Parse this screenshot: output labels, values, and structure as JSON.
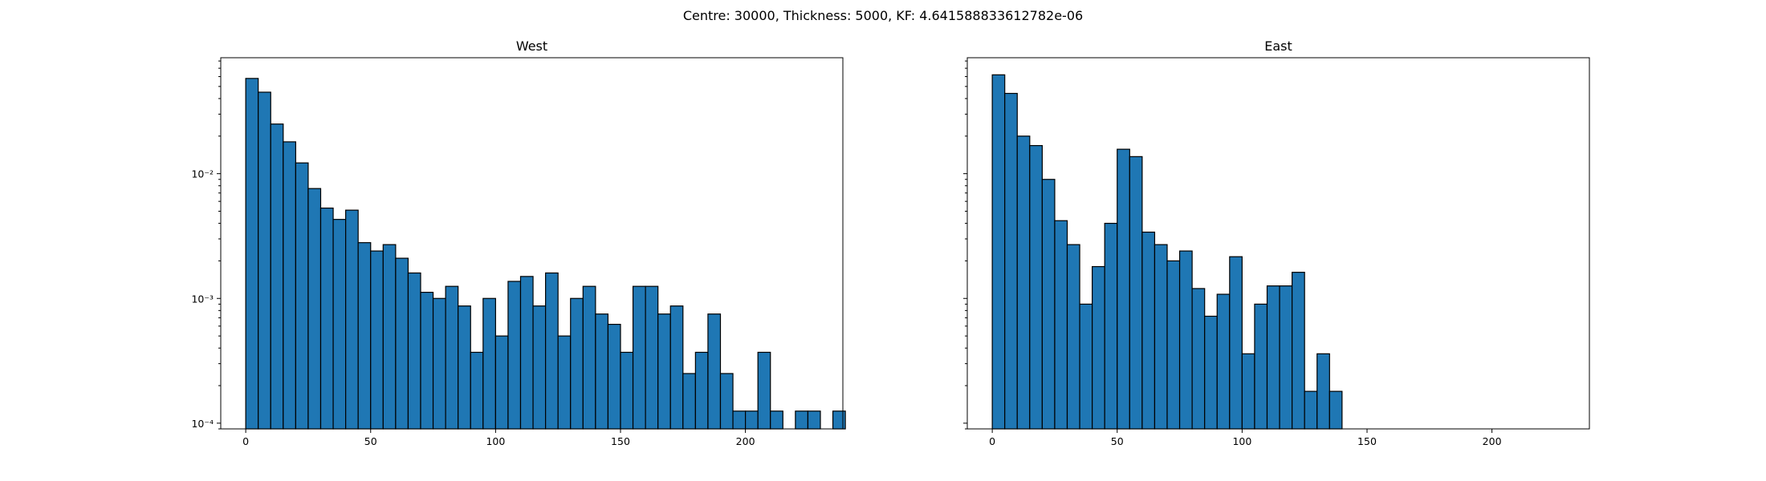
{
  "figure": {
    "suptitle": "Centre: 30000, Thickness: 5000, KF: 4.641588833612782e-06"
  },
  "chart_data": [
    {
      "type": "bar",
      "title": "West",
      "xlabel": "",
      "ylabel": "",
      "bin_width": 5,
      "bin_start": 0,
      "x_ticks": [
        0,
        50,
        100,
        150,
        200
      ],
      "y_scale": "log",
      "y_ticks": [
        0.0001,
        0.001,
        0.01
      ],
      "y_tick_labels": [
        "10⁻⁴",
        "10⁻³",
        "10⁻²"
      ],
      "xlim": [
        -10,
        239
      ],
      "ylim": [
        9e-05,
        0.085
      ],
      "bar_color": "#1f77b4",
      "values": [
        0.058,
        0.045,
        0.025,
        0.018,
        0.0122,
        0.0076,
        0.0053,
        0.0043,
        0.0051,
        0.0028,
        0.0024,
        0.0027,
        0.0021,
        0.0016,
        0.00112,
        0.001,
        0.00125,
        0.00087,
        0.00037,
        0.001,
        0.0005,
        0.00137,
        0.0015,
        0.00087,
        0.0016,
        0.0005,
        0.001,
        0.00125,
        0.00075,
        0.00062,
        0.00037,
        0.00125,
        0.00125,
        0.00075,
        0.00087,
        0.00025,
        0.00037,
        0.00075,
        0.00025,
        0.000125,
        0.000125,
        0.00037,
        0.000125,
        0,
        0.000125,
        0.000125,
        0,
        0.000125
      ]
    },
    {
      "type": "bar",
      "title": "East",
      "xlabel": "",
      "ylabel": "",
      "bin_width": 5,
      "bin_start": 0,
      "x_ticks": [
        0,
        50,
        100,
        150,
        200
      ],
      "y_scale": "log",
      "y_ticks": [
        0.0001,
        0.001,
        0.01
      ],
      "y_tick_labels": [
        "10⁻⁴",
        "10⁻³",
        "10⁻²"
      ],
      "xlim": [
        -10,
        239
      ],
      "ylim": [
        9e-05,
        0.085
      ],
      "bar_color": "#1f77b4",
      "values": [
        0.062,
        0.044,
        0.02,
        0.0168,
        0.009,
        0.0042,
        0.0027,
        0.0009,
        0.0018,
        0.004,
        0.0157,
        0.0137,
        0.0034,
        0.0027,
        0.002,
        0.0024,
        0.0012,
        0.00072,
        0.00108,
        0.00216,
        0.00036,
        0.0009,
        0.00126,
        0.00126,
        0.00162,
        0.00018,
        0.00036,
        0.00018
      ]
    }
  ]
}
